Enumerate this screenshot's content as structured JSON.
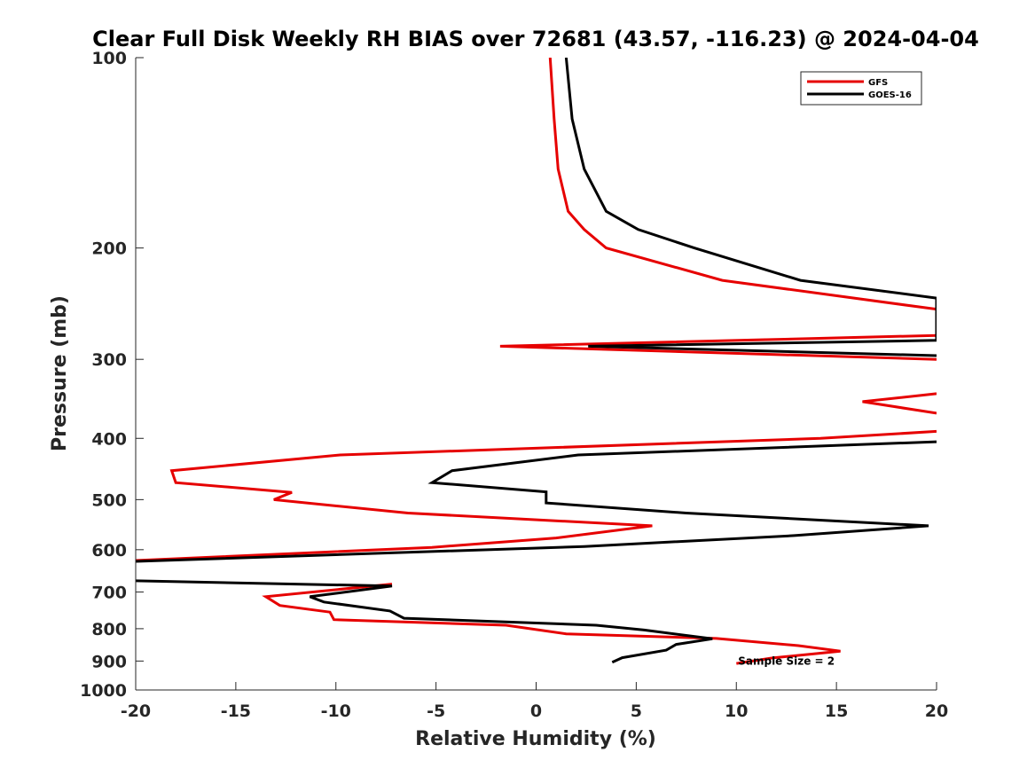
{
  "chart_data": {
    "type": "line",
    "title": "Clear Full Disk Weekly RH BIAS over 72681 (43.57, -116.23) @ 2024-04-04",
    "xlabel": "Relative Humidity (%)",
    "ylabel": "Pressure (mb)",
    "xlim": [
      -20,
      20
    ],
    "ylim": [
      100,
      1000
    ],
    "y_scale": "log",
    "y_reversed": true,
    "x_ticks": [
      -20,
      -15,
      -10,
      -5,
      0,
      5,
      10,
      15,
      20
    ],
    "x_tick_labels": [
      "-20",
      "-15",
      "-10",
      "-5",
      "0",
      "5",
      "10",
      "15",
      "20"
    ],
    "y_ticks": [
      100,
      200,
      300,
      400,
      500,
      600,
      700,
      800,
      900,
      1000
    ],
    "y_tick_labels": [
      "100",
      "200",
      "300",
      "400",
      "500",
      "600",
      "700",
      "800",
      "900",
      "1000"
    ],
    "grid": false,
    "legend_placement": "top-right",
    "series": [
      {
        "name": "GFS",
        "color": "#e60000",
        "points": [
          [
            0.7,
            100
          ],
          [
            0.9,
            125
          ],
          [
            1.1,
            150
          ],
          [
            1.6,
            175
          ],
          [
            2.4,
            187
          ],
          [
            3.5,
            200
          ],
          [
            9.3,
            225
          ],
          [
            20,
            250
          ],
          [
            20,
            275
          ],
          [
            -1.8,
            286
          ],
          [
            20,
            300
          ],
          [
            null,
            null
          ],
          [
            20,
            340
          ],
          [
            16.3,
            350
          ],
          [
            20,
            365
          ],
          [
            null,
            null
          ],
          [
            20,
            390
          ],
          [
            14.2,
            400
          ],
          [
            -9.8,
            425
          ],
          [
            -18.2,
            450
          ],
          [
            -18.0,
            470
          ],
          [
            -12.2,
            487
          ],
          [
            -13.1,
            500
          ],
          [
            -6.4,
            525
          ],
          [
            5.8,
            550
          ],
          [
            1.0,
            575
          ],
          [
            -5.2,
            595
          ],
          [
            -20,
            624
          ],
          [
            null,
            null
          ],
          [
            -7.2,
            680
          ],
          [
            -13.5,
            712
          ],
          [
            -12.8,
            735
          ],
          [
            -10.3,
            753
          ],
          [
            -10.1,
            774
          ],
          [
            -1.5,
            790
          ],
          [
            1.5,
            815
          ],
          [
            9.0,
            829
          ],
          [
            13.1,
            851
          ],
          [
            15.2,
            868
          ],
          [
            11.8,
            890
          ],
          [
            10.0,
            908
          ]
        ]
      },
      {
        "name": "GOES-16",
        "color": "#000000",
        "points": [
          [
            1.5,
            100
          ],
          [
            1.8,
            125
          ],
          [
            2.4,
            150
          ],
          [
            3.5,
            175
          ],
          [
            5.1,
            187
          ],
          [
            7.9,
            200
          ],
          [
            13.2,
            225
          ],
          [
            20,
            240
          ],
          [
            20,
            280
          ],
          [
            2.6,
            286
          ],
          [
            20,
            296
          ],
          [
            null,
            null
          ],
          [
            20,
            405
          ],
          [
            2.1,
            425
          ],
          [
            -4.2,
            450
          ],
          [
            -5.2,
            470
          ],
          [
            0.5,
            486
          ],
          [
            0.5,
            506
          ],
          [
            7.5,
            525
          ],
          [
            19.6,
            550
          ],
          [
            12.9,
            570
          ],
          [
            2.4,
            593
          ],
          [
            -20,
            626
          ],
          [
            null,
            null
          ],
          [
            -20,
            672
          ],
          [
            -7.2,
            685
          ],
          [
            -11.3,
            712
          ],
          [
            -10.6,
            726
          ],
          [
            -7.3,
            750
          ],
          [
            -6.6,
            770
          ],
          [
            3.0,
            790
          ],
          [
            5.4,
            804
          ],
          [
            8.8,
            830
          ],
          [
            7.0,
            847
          ],
          [
            6.5,
            865
          ],
          [
            4.3,
            889
          ],
          [
            3.8,
            904
          ]
        ]
      }
    ],
    "annotations": [
      {
        "text": "Sample Size = 2",
        "x": 12.5,
        "y": 900
      }
    ]
  }
}
